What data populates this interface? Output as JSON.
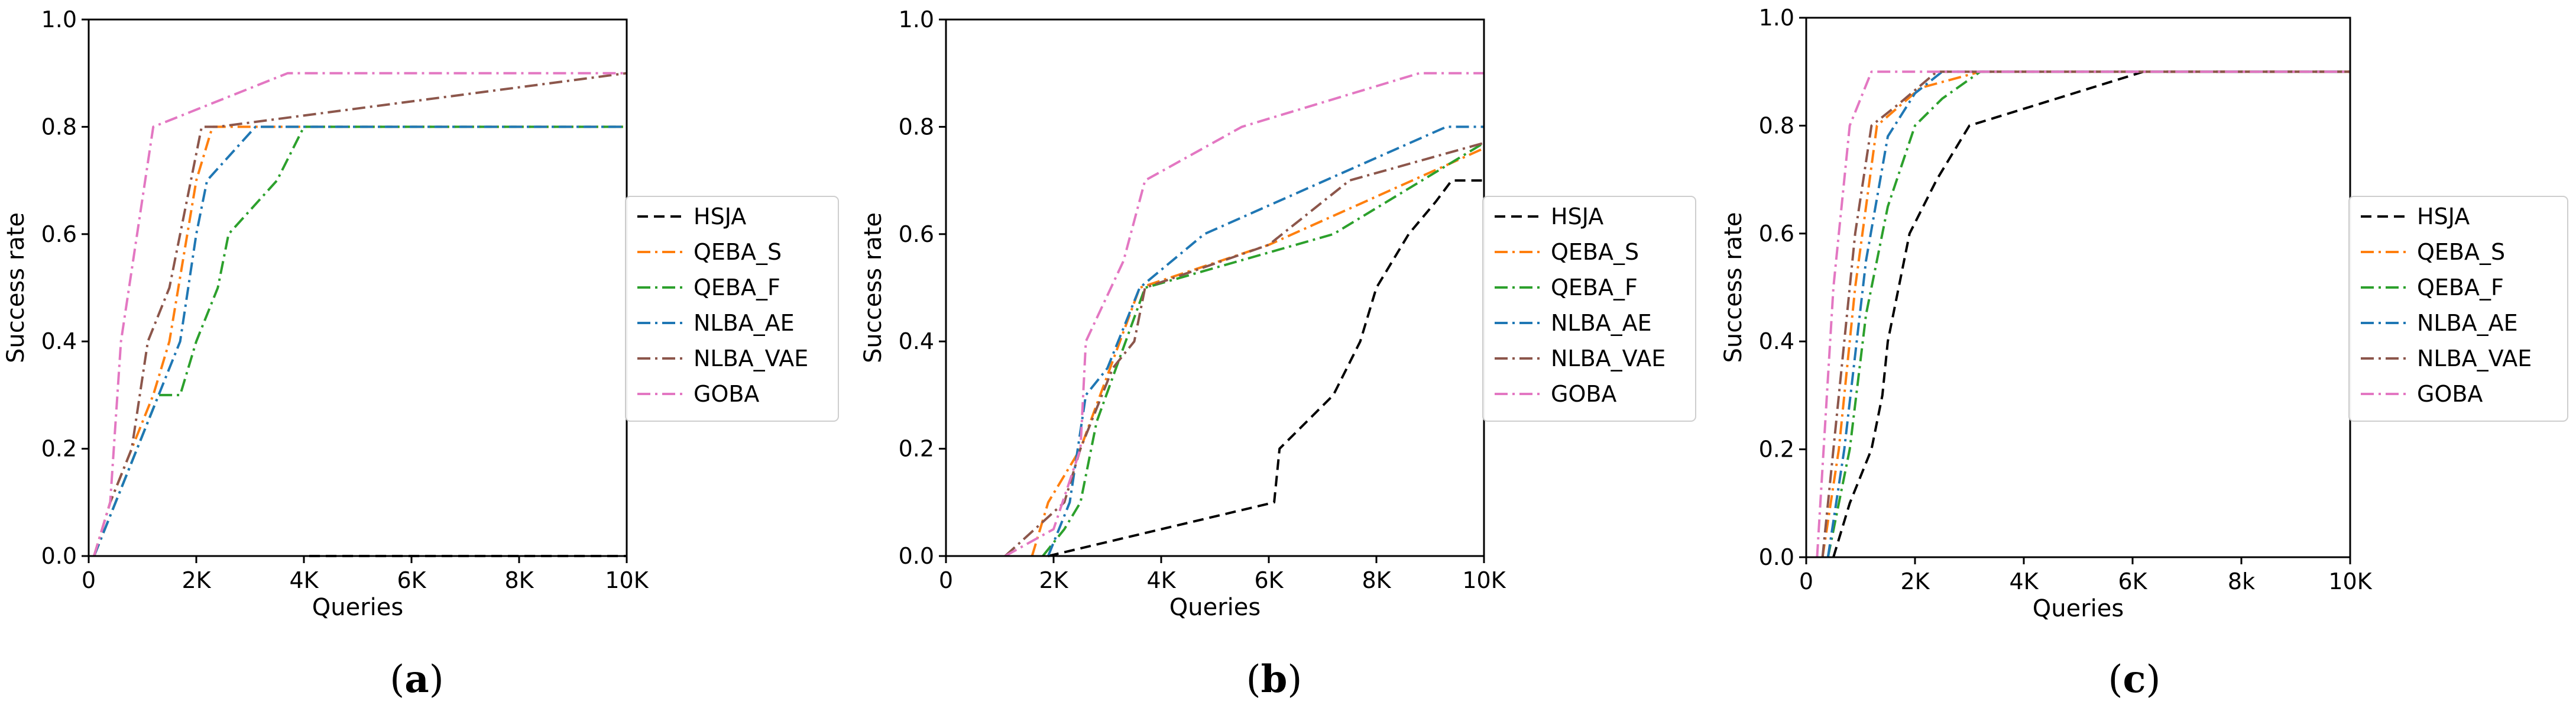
{
  "chart_data": [
    {
      "type": "line",
      "panel": "a",
      "caption": {
        "open": "(",
        "letter": "a",
        "close": ")"
      },
      "xlabel": "Queries",
      "ylabel": "Success rate",
      "xlim": [
        0,
        10000
      ],
      "ylim": [
        0,
        1.0
      ],
      "xticks": [
        0,
        2000,
        4000,
        6000,
        8000,
        10000
      ],
      "xtick_labels": [
        "0",
        "2K",
        "4K",
        "6K",
        "8K",
        "10K"
      ],
      "yticks": [
        0,
        0.2,
        0.4,
        0.6,
        0.8,
        1.0
      ],
      "ytick_labels": [
        "0.0",
        "0.2",
        "0.4",
        "0.6",
        "0.8",
        "1.0"
      ],
      "legend_position": "right-middle",
      "series": [
        {
          "name": "HSJA",
          "color": "#000000",
          "dash": "dashed",
          "x": [
            4100,
            10000
          ],
          "y": [
            0.0,
            0.0
          ]
        },
        {
          "name": "QEBA_S",
          "color": "#ff7f0e",
          "dash": "dashdot",
          "x": [
            100,
            400,
            800,
            1200,
            1500,
            2000,
            2300,
            10000
          ],
          "y": [
            0.0,
            0.1,
            0.2,
            0.3,
            0.4,
            0.7,
            0.8,
            0.8
          ]
        },
        {
          "name": "QEBA_F",
          "color": "#2ca02c",
          "dash": "dashdot",
          "x": [
            100,
            500,
            900,
            1300,
            1700,
            2000,
            2400,
            2600,
            3500,
            4000,
            10000
          ],
          "y": [
            0.0,
            0.1,
            0.2,
            0.3,
            0.3,
            0.4,
            0.5,
            0.6,
            0.7,
            0.8,
            0.8
          ]
        },
        {
          "name": "NLBA_AE",
          "color": "#1f77b4",
          "dash": "dashdot",
          "x": [
            100,
            500,
            900,
            1300,
            1700,
            2000,
            2200,
            3100,
            10000
          ],
          "y": [
            0.0,
            0.1,
            0.2,
            0.3,
            0.4,
            0.6,
            0.7,
            0.8,
            0.8
          ]
        },
        {
          "name": "NLBA_VAE",
          "color": "#8c564b",
          "dash": "dashdot",
          "x": [
            100,
            400,
            800,
            1100,
            1500,
            2100,
            2400,
            10000
          ],
          "y": [
            0.0,
            0.1,
            0.2,
            0.4,
            0.5,
            0.8,
            0.8,
            0.9
          ]
        },
        {
          "name": "GOBA",
          "color": "#e377c2",
          "dash": "dashdot",
          "x": [
            100,
            400,
            600,
            900,
            1200,
            3700,
            10000
          ],
          "y": [
            0.0,
            0.1,
            0.4,
            0.6,
            0.8,
            0.9,
            0.9
          ]
        }
      ]
    },
    {
      "type": "line",
      "panel": "b",
      "caption": {
        "open": "(",
        "letter": "b",
        "close": ")"
      },
      "xlabel": "Queries",
      "ylabel": "Success rate",
      "xlim": [
        0,
        10000
      ],
      "ylim": [
        0,
        1.0
      ],
      "xticks": [
        0,
        2000,
        4000,
        6000,
        8000,
        10000
      ],
      "xtick_labels": [
        "0",
        "2K",
        "4K",
        "6K",
        "8K",
        "10K"
      ],
      "yticks": [
        0,
        0.2,
        0.4,
        0.6,
        0.8,
        1.0
      ],
      "ytick_labels": [
        "0.0",
        "0.2",
        "0.4",
        "0.6",
        "0.8",
        "1.0"
      ],
      "legend_position": "right-middle",
      "series": [
        {
          "name": "HSJA",
          "color": "#000000",
          "dash": "dashed",
          "x": [
            1900,
            6100,
            6200,
            7200,
            7700,
            8000,
            8600,
            9100,
            9400,
            10000
          ],
          "y": [
            0.0,
            0.1,
            0.2,
            0.3,
            0.4,
            0.5,
            0.6,
            0.66,
            0.7,
            0.7
          ]
        },
        {
          "name": "QEBA_S",
          "color": "#ff7f0e",
          "dash": "dashdot",
          "x": [
            1600,
            1900,
            2500,
            3600,
            6000,
            10000
          ],
          "y": [
            0.0,
            0.1,
            0.2,
            0.5,
            0.58,
            0.76
          ]
        },
        {
          "name": "QEBA_F",
          "color": "#2ca02c",
          "dash": "dashdot",
          "x": [
            1800,
            2200,
            2500,
            2800,
            3700,
            7200,
            10000
          ],
          "y": [
            0.0,
            0.05,
            0.1,
            0.25,
            0.5,
            0.6,
            0.77
          ]
        },
        {
          "name": "NLBA_AE",
          "color": "#1f77b4",
          "dash": "dashdot",
          "x": [
            1900,
            2300,
            2600,
            3000,
            3600,
            4800,
            9300,
            10000
          ],
          "y": [
            0.0,
            0.1,
            0.3,
            0.35,
            0.5,
            0.6,
            0.8,
            0.8
          ]
        },
        {
          "name": "NLBA_VAE",
          "color": "#8c564b",
          "dash": "dashdot",
          "x": [
            1100,
            2200,
            2500,
            3100,
            3500,
            3700,
            6000,
            7500,
            10000
          ],
          "y": [
            0.0,
            0.1,
            0.2,
            0.35,
            0.4,
            0.5,
            0.58,
            0.7,
            0.77
          ]
        },
        {
          "name": "GOBA",
          "color": "#e377c2",
          "dash": "dashdot",
          "x": [
            1100,
            2000,
            2500,
            2600,
            3300,
            3700,
            5500,
            8800,
            10000
          ],
          "y": [
            0.0,
            0.05,
            0.2,
            0.4,
            0.55,
            0.7,
            0.8,
            0.9,
            0.9
          ]
        }
      ]
    },
    {
      "type": "line",
      "panel": "c",
      "caption": {
        "open": "(",
        "letter": "c",
        "close": ")"
      },
      "xlabel": "Queries",
      "ylabel": "Success rate",
      "xlim": [
        0,
        10000
      ],
      "ylim": [
        0,
        1.0
      ],
      "xticks": [
        0,
        2000,
        4000,
        6000,
        8000,
        10000
      ],
      "xtick_labels": [
        "0",
        "2K",
        "4K",
        "6K",
        "8k",
        "10K"
      ],
      "yticks": [
        0,
        0.2,
        0.4,
        0.6,
        0.8,
        1.0
      ],
      "ytick_labels": [
        "0.0",
        "0.2",
        "0.4",
        "0.6",
        "0.8",
        "1.0"
      ],
      "legend_position": "right-middle",
      "series": [
        {
          "name": "HSJA",
          "color": "#000000",
          "dash": "dashed",
          "x": [
            500,
            800,
            1200,
            1400,
            1500,
            1700,
            1900,
            2400,
            2700,
            3000,
            6200,
            10000
          ],
          "y": [
            0.0,
            0.1,
            0.2,
            0.3,
            0.4,
            0.5,
            0.6,
            0.7,
            0.75,
            0.8,
            0.9,
            0.9
          ]
        },
        {
          "name": "QEBA_S",
          "color": "#ff7f0e",
          "dash": "dashdot",
          "x": [
            300,
            600,
            900,
            1300,
            2100,
            3200,
            10000
          ],
          "y": [
            0.0,
            0.2,
            0.5,
            0.8,
            0.87,
            0.9,
            0.9
          ]
        },
        {
          "name": "QEBA_F",
          "color": "#2ca02c",
          "dash": "dashdot",
          "x": [
            400,
            800,
            1100,
            1500,
            2000,
            2500,
            3200,
            10000
          ],
          "y": [
            0.0,
            0.2,
            0.45,
            0.65,
            0.8,
            0.85,
            0.9,
            0.9
          ]
        },
        {
          "name": "NLBA_AE",
          "color": "#1f77b4",
          "dash": "dashdot",
          "x": [
            400,
            700,
            1100,
            1500,
            2000,
            2500,
            10000
          ],
          "y": [
            0.0,
            0.2,
            0.55,
            0.78,
            0.86,
            0.9,
            0.9
          ]
        },
        {
          "name": "NLBA_VAE",
          "color": "#8c564b",
          "dash": "dashdot",
          "x": [
            300,
            500,
            900,
            1200,
            1700,
            2400,
            10000
          ],
          "y": [
            0.0,
            0.2,
            0.6,
            0.8,
            0.84,
            0.9,
            0.9
          ]
        },
        {
          "name": "GOBA",
          "color": "#e377c2",
          "dash": "dashdot",
          "x": [
            200,
            500,
            800,
            1200,
            10000
          ],
          "y": [
            0.0,
            0.5,
            0.8,
            0.9,
            0.9
          ]
        }
      ]
    }
  ]
}
